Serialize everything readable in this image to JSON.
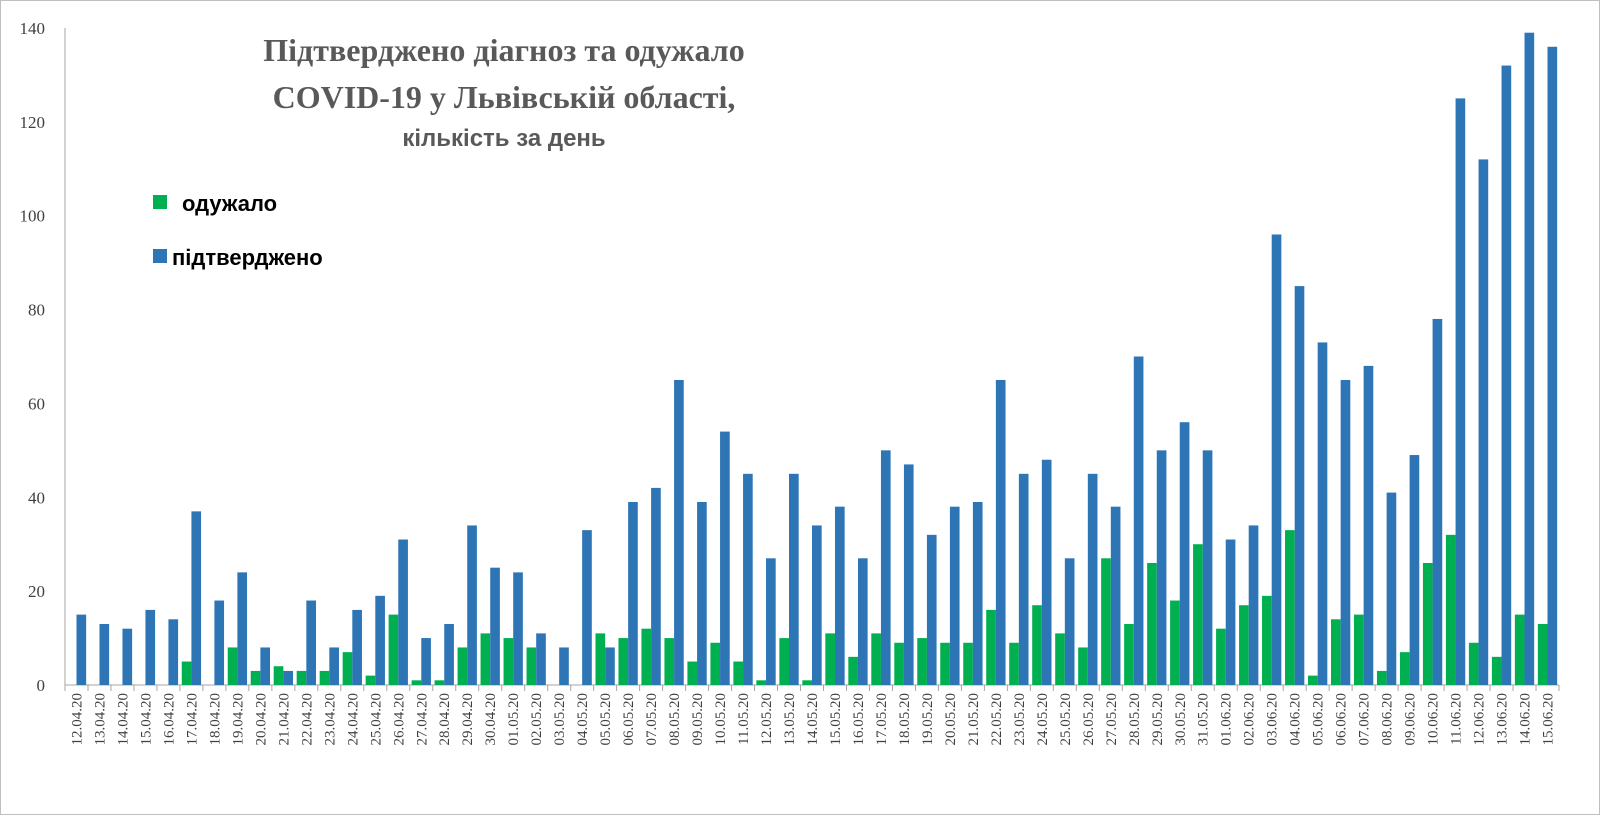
{
  "colors": {
    "recovered": "#00b050",
    "confirmed": "#2e75b6",
    "axis": "#a6a6a6",
    "title": "#595959"
  },
  "chart_data": {
    "type": "bar",
    "title": [
      "Підтверджено діагноз та одужало",
      "COVID-19 у Львівській області,"
    ],
    "subtitle": "кількість за день",
    "xlabel": "",
    "ylabel": "",
    "ylim": [
      0,
      140
    ],
    "yticks": [
      0,
      20,
      40,
      60,
      80,
      100,
      120,
      140
    ],
    "grid": false,
    "legend_position": "top-left",
    "categories": [
      "12.04.20",
      "13.04.20",
      "14.04.20",
      "15.04.20",
      "16.04.20",
      "17.04.20",
      "18.04.20",
      "19.04.20",
      "20.04.20",
      "21.04.20",
      "22.04.20",
      "23.04.20",
      "24.04.20",
      "25.04.20",
      "26.04.20",
      "27.04.20",
      "28.04.20",
      "29.04.20",
      "30.04.20",
      "01.05.20",
      "02.05.20",
      "03.05.20",
      "04.05.20",
      "05.05.20",
      "06.05.20",
      "07.05.20",
      "08.05.20",
      "09.05.20",
      "10.05.20",
      "11.05.20",
      "12.05.20",
      "13.05.20",
      "14.05.20",
      "15.05.20",
      "16.05.20",
      "17.05.20",
      "18.05.20",
      "19.05.20",
      "20.05.20",
      "21.05.20",
      "22.05.20",
      "23.05.20",
      "24.05.20",
      "25.05.20",
      "26.05.20",
      "27.05.20",
      "28.05.20",
      "29.05.20",
      "30.05.20",
      "31.05.20",
      "01.06.20",
      "02.06.20",
      "03.06.20",
      "04.06.20",
      "05.06.20",
      "06.06.20",
      "07.06.20",
      "08.06.20",
      "09.06.20",
      "10.06.20",
      "11.06.20",
      "12.06.20",
      "13.06.20",
      "14.06.20",
      "15.06.20"
    ],
    "series": [
      {
        "name": "одужало",
        "values": [
          0,
          0,
          0,
          0,
          0,
          5,
          0,
          8,
          3,
          4,
          3,
          3,
          7,
          2,
          15,
          1,
          1,
          8,
          11,
          10,
          8,
          0,
          0,
          11,
          10,
          12,
          10,
          5,
          9,
          5,
          1,
          10,
          1,
          11,
          6,
          11,
          9,
          10,
          9,
          9,
          16,
          9,
          17,
          11,
          8,
          27,
          13,
          26,
          18,
          30,
          12,
          17,
          19,
          33,
          2,
          14,
          15,
          3,
          7,
          26,
          32,
          9,
          6,
          15,
          13
        ]
      },
      {
        "name": "підтверджено",
        "values": [
          15,
          13,
          12,
          16,
          14,
          37,
          18,
          24,
          8,
          3,
          18,
          8,
          16,
          19,
          31,
          10,
          13,
          34,
          25,
          24,
          11,
          8,
          33,
          8,
          39,
          42,
          65,
          39,
          54,
          45,
          27,
          45,
          34,
          38,
          27,
          50,
          47,
          32,
          38,
          39,
          65,
          45,
          48,
          27,
          45,
          38,
          70,
          50,
          56,
          50,
          31,
          34,
          96,
          85,
          73,
          65,
          68,
          41,
          49,
          78,
          125,
          112,
          132,
          139,
          136
        ]
      }
    ]
  }
}
